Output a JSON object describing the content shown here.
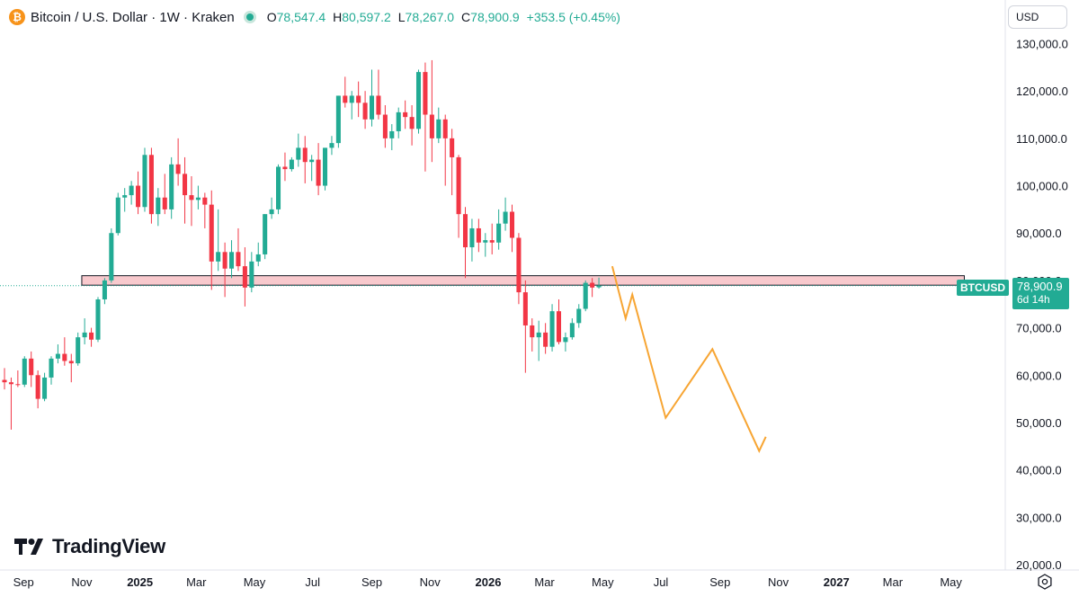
{
  "header": {
    "icon": "bitcoin-icon",
    "title": "Bitcoin / U.S. Dollar · 1W · Kraken",
    "open_label": "O",
    "open": "78,547.4",
    "high_label": "H",
    "high": "80,597.2",
    "low_label": "L",
    "low": "78,267.0",
    "close_label": "C",
    "close": "78,900.9",
    "change": "+353.5 (+0.45%)"
  },
  "currency": "USD",
  "price_tag": {
    "symbol": "BTCUSD",
    "price": "78,900.9",
    "countdown": "6d 14h"
  },
  "logo": "TradingView",
  "colors": {
    "up": "#22ab94",
    "down": "#f23645",
    "zone_fill": "#f8c9cd",
    "projection": "#f7a533"
  },
  "chart_data": {
    "type": "candlestick",
    "ylim": [
      20000,
      132000
    ],
    "y_ticks": [
      20000,
      30000,
      40000,
      50000,
      60000,
      70000,
      80000,
      90000,
      100000,
      110000,
      120000,
      130000
    ],
    "y_tick_labels": [
      "20,000.0",
      "30,000.0",
      "40,000.0",
      "50,000.0",
      "60,000.0",
      "70,000.0",
      "80,000.0",
      "90,000.0",
      "100,000.0",
      "110,000.0",
      "120,000.0",
      "130,000.0"
    ],
    "x_range": [
      "2024-08-12",
      "2027-05-24"
    ],
    "x_ticks": [
      {
        "date": "2024-09-01",
        "label": "Sep"
      },
      {
        "date": "2024-11-01",
        "label": "Nov"
      },
      {
        "date": "2025-01-01",
        "label": "2025"
      },
      {
        "date": "2025-03-01",
        "label": "Mar"
      },
      {
        "date": "2025-05-01",
        "label": "May"
      },
      {
        "date": "2025-07-01",
        "label": "Jul"
      },
      {
        "date": "2025-09-01",
        "label": "Sep"
      },
      {
        "date": "2025-11-01",
        "label": "Nov"
      },
      {
        "date": "2026-01-01",
        "label": "2026"
      },
      {
        "date": "2026-03-01",
        "label": "Mar"
      },
      {
        "date": "2026-05-01",
        "label": "May"
      },
      {
        "date": "2026-07-01",
        "label": "Jul"
      },
      {
        "date": "2026-09-01",
        "label": "Sep"
      },
      {
        "date": "2026-11-01",
        "label": "Nov"
      },
      {
        "date": "2027-01-01",
        "label": "2027"
      },
      {
        "date": "2027-03-01",
        "label": "Mar"
      },
      {
        "date": "2027-05-01",
        "label": "May"
      }
    ],
    "first_candle": "2024-08-12",
    "candle_interval_days": 7,
    "candles": [
      [
        59000,
        61500,
        57000,
        58500
      ],
      [
        58500,
        59500,
        48500,
        58100
      ],
      [
        58100,
        61000,
        57500,
        58000
      ],
      [
        58000,
        64000,
        57500,
        63500
      ],
      [
        63500,
        65000,
        57500,
        60000
      ],
      [
        60000,
        61000,
        53000,
        55000
      ],
      [
        55000,
        60500,
        54500,
        59500
      ],
      [
        59500,
        64000,
        58000,
        63500
      ],
      [
        63500,
        66500,
        62500,
        64500
      ],
      [
        64500,
        68000,
        62000,
        63000
      ],
      [
        63000,
        64500,
        58500,
        62500
      ],
      [
        62500,
        69000,
        62000,
        68000
      ],
      [
        68000,
        72000,
        66500,
        69000
      ],
      [
        69000,
        70000,
        66000,
        67500
      ],
      [
        67500,
        76500,
        67000,
        76000
      ],
      [
        76000,
        80500,
        75000,
        80000
      ],
      [
        80000,
        91000,
        79500,
        90000
      ],
      [
        90000,
        98500,
        89500,
        97500
      ],
      [
        97500,
        99500,
        94500,
        98000
      ],
      [
        98000,
        101000,
        96000,
        100000
      ],
      [
        100000,
        103000,
        94000,
        95500
      ],
      [
        95500,
        108000,
        94500,
        106500
      ],
      [
        106500,
        108000,
        92000,
        94000
      ],
      [
        94000,
        99500,
        91500,
        97500
      ],
      [
        97500,
        102500,
        94000,
        95000
      ],
      [
        95000,
        106000,
        93000,
        104500
      ],
      [
        104500,
        110000,
        100000,
        102500
      ],
      [
        102500,
        106000,
        92000,
        98000
      ],
      [
        98000,
        102000,
        91500,
        97000
      ],
      [
        97000,
        100000,
        95000,
        97500
      ],
      [
        97500,
        98500,
        91000,
        96000
      ],
      [
        96000,
        99000,
        78000,
        84000
      ],
      [
        84000,
        95000,
        82000,
        86000
      ],
      [
        86000,
        88000,
        76500,
        82500
      ],
      [
        82500,
        88500,
        80500,
        86000
      ],
      [
        86000,
        91000,
        82000,
        83000
      ],
      [
        83000,
        87000,
        74500,
        78500
      ],
      [
        78500,
        86000,
        77500,
        84000
      ],
      [
        84000,
        88000,
        83000,
        85500
      ],
      [
        85500,
        94000,
        84500,
        94000
      ],
      [
        94000,
        97500,
        93000,
        95000
      ],
      [
        95000,
        104500,
        94000,
        104000
      ],
      [
        104000,
        107000,
        101000,
        103500
      ],
      [
        103500,
        106000,
        103000,
        105500
      ],
      [
        105500,
        111000,
        104000,
        108000
      ],
      [
        108000,
        110500,
        100500,
        105000
      ],
      [
        105000,
        106500,
        101000,
        105500
      ],
      [
        105500,
        109000,
        98000,
        100000
      ],
      [
        100000,
        108000,
        99000,
        108000
      ],
      [
        108000,
        110500,
        106500,
        109000
      ],
      [
        109000,
        119000,
        108000,
        119000
      ],
      [
        119000,
        123000,
        116500,
        117500
      ],
      [
        117500,
        120000,
        114000,
        119000
      ],
      [
        119000,
        122000,
        114500,
        117500
      ],
      [
        117500,
        120000,
        112000,
        114000
      ],
      [
        114000,
        124500,
        112500,
        119000
      ],
      [
        119000,
        124500,
        114000,
        115000
      ],
      [
        115000,
        117000,
        108000,
        110000
      ],
      [
        110000,
        113000,
        107500,
        111500
      ],
      [
        111500,
        116500,
        110000,
        115500
      ],
      [
        115500,
        118000,
        112000,
        114500
      ],
      [
        114500,
        117000,
        108500,
        112000
      ],
      [
        112000,
        124500,
        111000,
        124000
      ],
      [
        124000,
        126000,
        103000,
        115000
      ],
      [
        115000,
        126500,
        105000,
        110000
      ],
      [
        110000,
        116500,
        109000,
        114000
      ],
      [
        114000,
        115000,
        100000,
        110000
      ],
      [
        110000,
        112000,
        98000,
        106000
      ],
      [
        106000,
        106500,
        89000,
        94000
      ],
      [
        94000,
        95500,
        80500,
        87000
      ],
      [
        87000,
        93000,
        84000,
        91000
      ],
      [
        91000,
        93000,
        86000,
        88000
      ],
      [
        88000,
        90000,
        85000,
        88500
      ],
      [
        88500,
        92000,
        85500,
        88000
      ],
      [
        88000,
        95000,
        86500,
        92000
      ],
      [
        92000,
        97500,
        90500,
        94500
      ],
      [
        94500,
        96000,
        86000,
        89000
      ],
      [
        89000,
        90000,
        75000,
        77500
      ],
      [
        77500,
        80000,
        60500,
        70500
      ],
      [
        70500,
        72000,
        65000,
        68000
      ],
      [
        68000,
        71500,
        63000,
        69000
      ],
      [
        69000,
        71000,
        64500,
        66000
      ],
      [
        66000,
        75000,
        65000,
        73500
      ],
      [
        73500,
        76000,
        66500,
        67000
      ],
      [
        67000,
        69000,
        65000,
        68000
      ],
      [
        68000,
        72000,
        67500,
        71000
      ],
      [
        71000,
        75000,
        70000,
        74000
      ],
      [
        74000,
        80000,
        73500,
        79500
      ],
      [
        79500,
        80500,
        76500,
        78500
      ],
      [
        78547.4,
        80597.2,
        78267,
        78900.9
      ]
    ],
    "zones": [
      {
        "from": "2024-11-01",
        "to": "2027-05-15",
        "low": 79000,
        "high": 81000
      }
    ],
    "projection": [
      {
        "date": "2026-05-11",
        "price": 83000
      },
      {
        "date": "2026-05-25",
        "price": 72000
      },
      {
        "date": "2026-06-01",
        "price": 77000
      },
      {
        "date": "2026-07-06",
        "price": 51000
      },
      {
        "date": "2026-08-24",
        "price": 65500
      },
      {
        "date": "2026-10-12",
        "price": 44000
      },
      {
        "date": "2026-10-19",
        "price": 47000
      }
    ],
    "current_price": 78900.9
  }
}
